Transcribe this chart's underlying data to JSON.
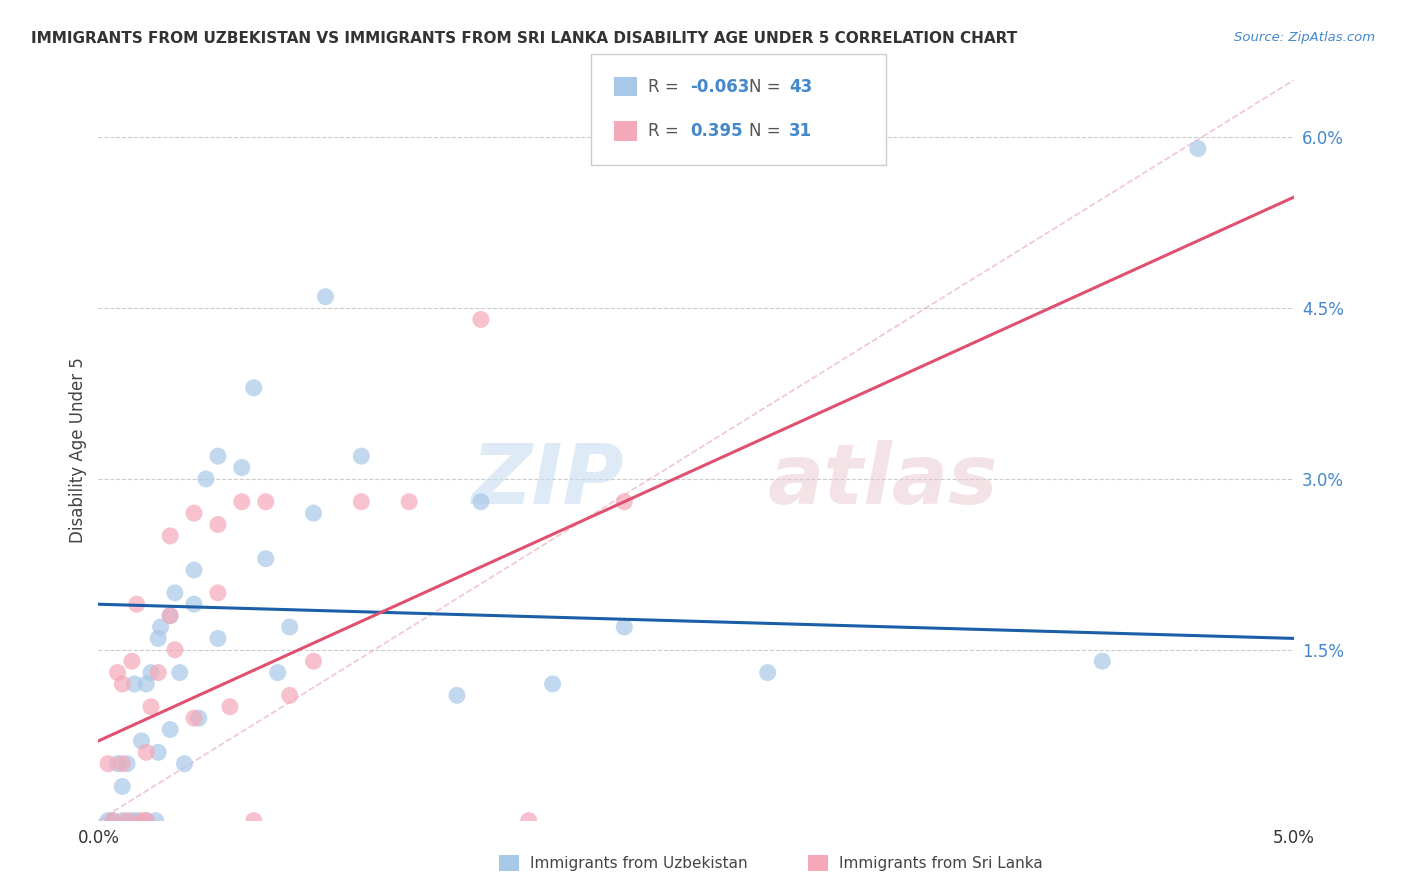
{
  "title": "IMMIGRANTS FROM UZBEKISTAN VS IMMIGRANTS FROM SRI LANKA DISABILITY AGE UNDER 5 CORRELATION CHART",
  "source": "Source: ZipAtlas.com",
  "ylabel": "Disability Age Under 5",
  "legend_label1": "Immigrants from Uzbekistan",
  "legend_label2": "Immigrants from Sri Lanka",
  "R1": "-0.063",
  "N1": "43",
  "R2": "0.395",
  "N2": "31",
  "color_uzbekistan": "#a8c8e8",
  "color_srilanka": "#f4a8b8",
  "color_line1": "#1a5fa8",
  "color_line2": "#e05070",
  "color_diagonal": "#e8a0b0",
  "xlim": [
    0.0,
    0.05
  ],
  "ylim": [
    0.0,
    0.065
  ],
  "yticks": [
    0.015,
    0.03,
    0.045,
    0.06
  ],
  "ytick_labels": [
    "1.5%",
    "3.0%",
    "4.5%",
    "6.0%"
  ],
  "xticks": [
    0.0,
    0.0125,
    0.025,
    0.0375,
    0.05
  ],
  "xtick_labels": [
    "0.0%",
    "",
    "",
    "",
    "5.0%"
  ],
  "uz_x": [
    0.0004,
    0.0006,
    0.0008,
    0.001,
    0.001,
    0.0012,
    0.0014,
    0.0015,
    0.0016,
    0.0018,
    0.002,
    0.002,
    0.0022,
    0.0024,
    0.0025,
    0.0025,
    0.0026,
    0.003,
    0.003,
    0.0032,
    0.0034,
    0.0036,
    0.004,
    0.004,
    0.0042,
    0.0045,
    0.005,
    0.005,
    0.006,
    0.0065,
    0.007,
    0.0075,
    0.008,
    0.009,
    0.0095,
    0.011,
    0.015,
    0.016,
    0.019,
    0.022,
    0.028,
    0.042,
    0.046
  ],
  "uz_y": [
    0.0,
    0.0,
    0.005,
    0.0,
    0.003,
    0.005,
    0.0,
    0.012,
    0.0,
    0.007,
    0.0,
    0.012,
    0.013,
    0.0,
    0.006,
    0.016,
    0.017,
    0.018,
    0.008,
    0.02,
    0.013,
    0.005,
    0.019,
    0.022,
    0.009,
    0.03,
    0.032,
    0.016,
    0.031,
    0.038,
    0.023,
    0.013,
    0.017,
    0.027,
    0.046,
    0.032,
    0.011,
    0.028,
    0.012,
    0.017,
    0.013,
    0.014,
    0.059
  ],
  "sl_x": [
    0.0004,
    0.0006,
    0.0008,
    0.001,
    0.001,
    0.0012,
    0.0014,
    0.0016,
    0.0018,
    0.002,
    0.002,
    0.0022,
    0.0025,
    0.003,
    0.003,
    0.0032,
    0.004,
    0.004,
    0.005,
    0.005,
    0.0055,
    0.006,
    0.0065,
    0.007,
    0.008,
    0.009,
    0.011,
    0.013,
    0.016,
    0.018,
    0.022
  ],
  "sl_y": [
    0.005,
    0.0,
    0.013,
    0.005,
    0.012,
    0.0,
    0.014,
    0.019,
    0.0,
    0.0,
    0.006,
    0.01,
    0.013,
    0.018,
    0.025,
    0.015,
    0.009,
    0.027,
    0.02,
    0.026,
    0.01,
    0.028,
    0.0,
    0.028,
    0.011,
    0.014,
    0.028,
    0.028,
    0.044,
    0.0,
    0.028
  ],
  "watermark_zip": "ZIP",
  "watermark_atlas": "atlas",
  "background_color": "#ffffff",
  "grid_color": "#cccccc"
}
